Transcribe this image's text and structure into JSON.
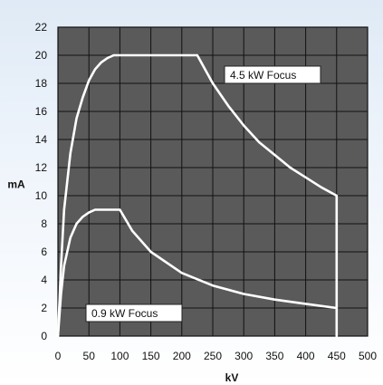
{
  "chart_data": {
    "type": "line",
    "title": "",
    "xlabel": "kV",
    "ylabel": "mA",
    "xlim": [
      0,
      500
    ],
    "ylim": [
      0,
      22
    ],
    "x_ticks": [
      0,
      50,
      100,
      150,
      200,
      250,
      300,
      350,
      400,
      450,
      500
    ],
    "y_ticks": [
      0,
      2,
      4,
      6,
      8,
      10,
      12,
      14,
      16,
      18,
      20,
      22
    ],
    "grid": true,
    "series": [
      {
        "name": "4.5 kW Focus",
        "x": [
          0,
          5,
          10,
          20,
          30,
          40,
          50,
          60,
          70,
          80,
          90,
          100,
          150,
          200,
          225,
          250,
          275,
          300,
          325,
          350,
          375,
          400,
          425,
          450,
          450
        ],
        "y": [
          0,
          5.0,
          9.0,
          13.0,
          15.5,
          17.0,
          18.2,
          19.0,
          19.5,
          19.8,
          20.0,
          20.0,
          20.0,
          20.0,
          20.0,
          18.0,
          16.4,
          15.0,
          13.8,
          12.9,
          12.0,
          11.3,
          10.6,
          10.0,
          0
        ],
        "color": "#ffffff"
      },
      {
        "name": "0.9 kW Focus",
        "x": [
          0,
          5,
          10,
          20,
          30,
          40,
          50,
          60,
          70,
          80,
          90,
          100,
          120,
          150,
          200,
          250,
          300,
          350,
          400,
          450
        ],
        "y": [
          0,
          3.0,
          5.0,
          7.0,
          8.0,
          8.5,
          8.8,
          9.0,
          9.0,
          9.0,
          9.0,
          9.0,
          7.5,
          6.0,
          4.5,
          3.6,
          3.0,
          2.6,
          2.3,
          2.0
        ],
        "color": "#ffffff"
      }
    ],
    "colors": {
      "plot_background": "#5a5a5a",
      "grid": "#111111",
      "curve": "#ffffff",
      "label_box": "#ffffff"
    }
  }
}
